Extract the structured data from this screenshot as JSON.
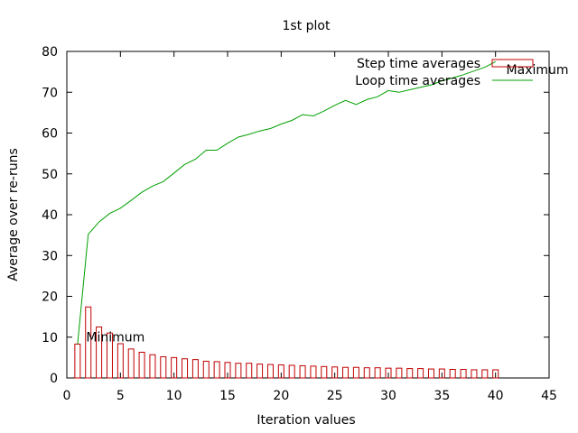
{
  "chart_data": {
    "type": "bar+line",
    "title": "1st plot",
    "xlabel": "Iteration values",
    "ylabel": "Average over re-runs",
    "xlim": [
      0,
      45
    ],
    "ylim": [
      0,
      80
    ],
    "xticks": [
      0,
      5,
      10,
      15,
      20,
      25,
      30,
      35,
      40,
      45
    ],
    "yticks": [
      0,
      10,
      20,
      30,
      40,
      50,
      60,
      70,
      80
    ],
    "grid": false,
    "legend_position": "top-right",
    "series": [
      {
        "name": "Step time averages",
        "kind": "bar",
        "color": "#c00000",
        "x": [
          1,
          2,
          3,
          4,
          5,
          6,
          7,
          8,
          9,
          10,
          11,
          12,
          13,
          14,
          15,
          16,
          17,
          18,
          19,
          20,
          21,
          22,
          23,
          24,
          25,
          26,
          27,
          28,
          29,
          30,
          31,
          32,
          33,
          34,
          35,
          36,
          37,
          38,
          39,
          40
        ],
        "values": [
          8.3,
          17.4,
          12.5,
          11.0,
          8.4,
          7.1,
          6.3,
          5.7,
          5.2,
          5.0,
          4.7,
          4.5,
          4.1,
          4.0,
          3.8,
          3.6,
          3.6,
          3.4,
          3.3,
          3.2,
          3.1,
          3.0,
          2.9,
          2.8,
          2.7,
          2.6,
          2.6,
          2.5,
          2.5,
          2.4,
          2.4,
          2.3,
          2.3,
          2.2,
          2.2,
          2.1,
          2.1,
          2.0,
          2.0,
          2.0
        ]
      },
      {
        "name": "Loop time averages",
        "kind": "line",
        "color": "#00a000",
        "x": [
          1,
          2,
          3,
          4,
          5,
          6,
          7,
          8,
          9,
          10,
          11,
          12,
          13,
          14,
          15,
          16,
          17,
          18,
          19,
          20,
          21,
          22,
          23,
          24,
          25,
          26,
          27,
          28,
          29,
          30,
          31,
          32,
          33,
          34,
          35,
          36,
          37,
          38,
          39,
          40
        ],
        "values": [
          8.3,
          35.2,
          38.2,
          40.3,
          41.6,
          43.5,
          45.5,
          47.0,
          48.1,
          50.2,
          52.3,
          53.6,
          55.8,
          55.8,
          57.5,
          59.0,
          59.7,
          60.5,
          61.1,
          62.2,
          63.1,
          64.5,
          64.2,
          65.4,
          66.8,
          68.0,
          67.0,
          68.2,
          68.9,
          70.4,
          70.0,
          70.6,
          71.2,
          71.8,
          72.8,
          73.5,
          74.3,
          75.2,
          76.1,
          77.5
        ]
      }
    ],
    "annotations": [
      {
        "text": "Minimum",
        "x": 1.8,
        "y": 9.0
      },
      {
        "text": "Maximum",
        "x": 41.0,
        "y": 74.5
      }
    ]
  }
}
